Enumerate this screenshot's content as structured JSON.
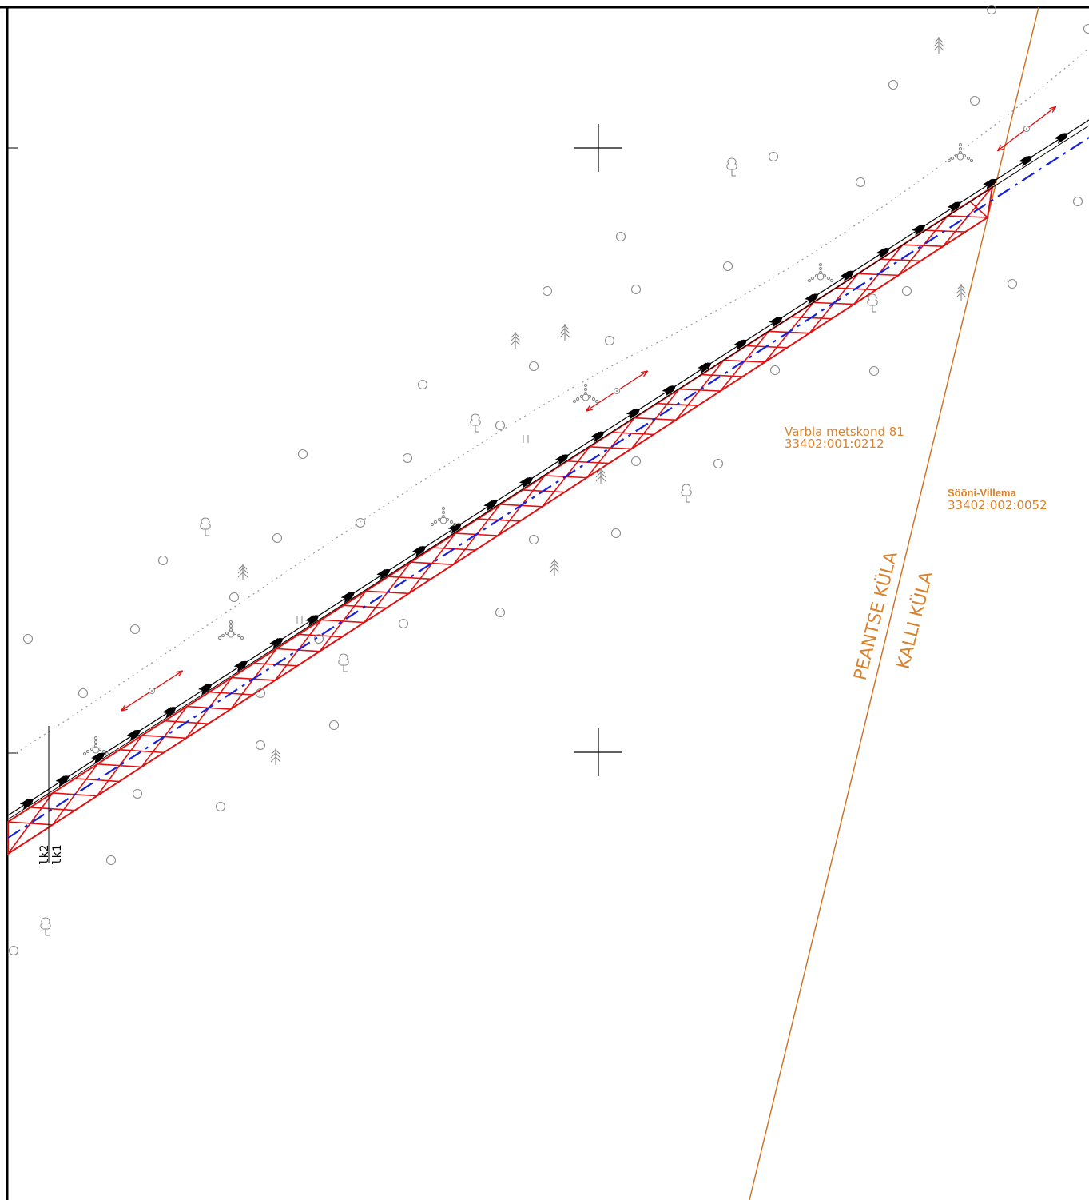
{
  "parcels": [
    {
      "name": "Varbla metskond 81",
      "code": "33402:001:0212"
    },
    {
      "name": "Sööni-Villema",
      "code": "33402:002:0052"
    }
  ],
  "villages": {
    "west": "PEANTSE KÜLA",
    "east": "KALLI KÜLA"
  },
  "line_markers": {
    "top": "lk2",
    "bottom": "lk1"
  },
  "colors": {
    "boundary": "#cc6f1e",
    "label": "#d9822b",
    "hatch": "#e01010",
    "centerline": "#1420e0",
    "symbols": "#8a8a8a"
  },
  "symbols": {
    "circle": "circle-icon",
    "deciduous_tree": "deciduous-tree-icon",
    "conifer": "conifer-icon",
    "shrub_cluster": "shrub-cluster-icon",
    "direction_arrow": "double-arrow-icon",
    "grid_cross": "grid-cross-icon"
  }
}
